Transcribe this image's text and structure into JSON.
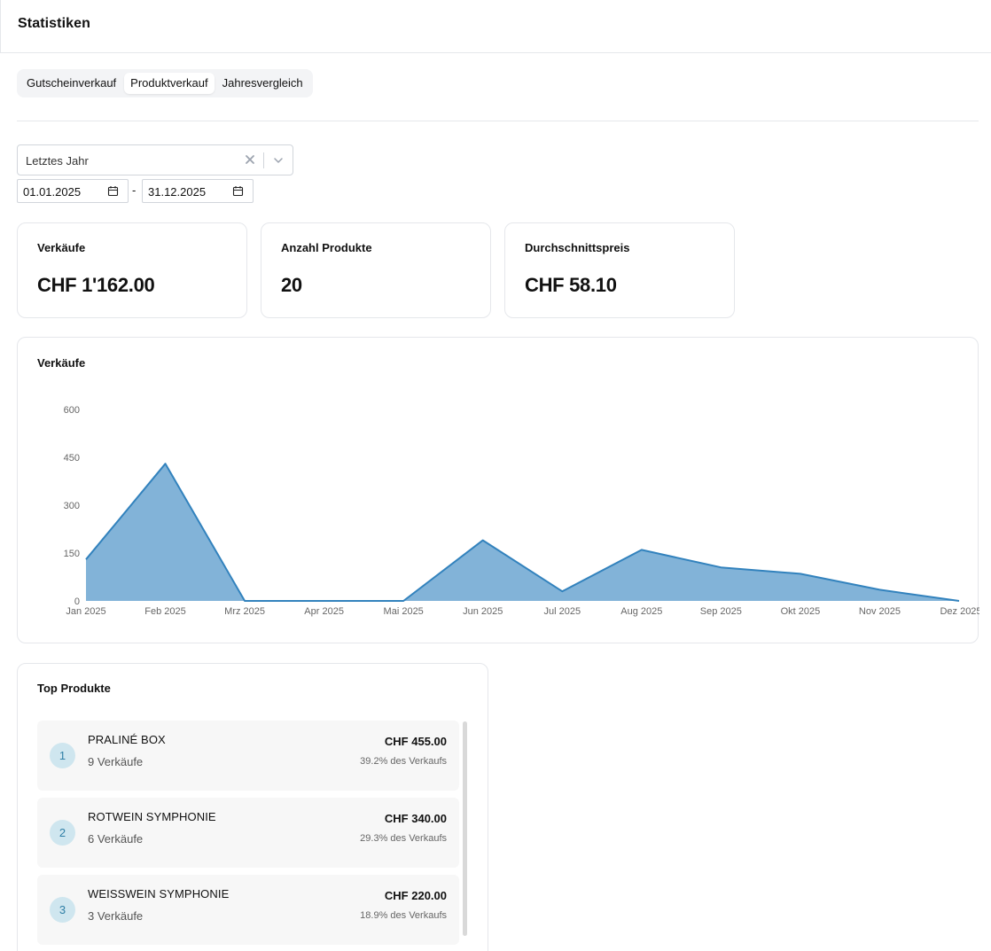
{
  "header": {
    "title": "Statistiken"
  },
  "tabs": [
    {
      "label": "Gutscheinverkauf",
      "active": false
    },
    {
      "label": "Produktverkauf",
      "active": true
    },
    {
      "label": "Jahresvergleich",
      "active": false
    }
  ],
  "filters": {
    "period_value": "Letztes Jahr",
    "date_from": "01.01.2025",
    "date_to": "31.12.2025",
    "date_separator": "-"
  },
  "kpis": [
    {
      "label": "Verkäufe",
      "value": "CHF 1'162.00"
    },
    {
      "label": "Anzahl Produkte",
      "value": "20"
    },
    {
      "label": "Durchschnittspreis",
      "value": "CHF 58.10"
    }
  ],
  "sales_chart": {
    "title": "Verkäufe"
  },
  "chart_data": {
    "type": "area",
    "title": "Verkäufe",
    "categories": [
      "Jan 2025",
      "Feb 2025",
      "Mrz 2025",
      "Apr 2025",
      "Mai 2025",
      "Jun 2025",
      "Jul 2025",
      "Aug 2025",
      "Sep 2025",
      "Okt 2025",
      "Nov 2025",
      "Dez 2025"
    ],
    "values": [
      130,
      430,
      0,
      0,
      0,
      190,
      30,
      160,
      105,
      85,
      35,
      0
    ],
    "yticks": [
      0,
      150,
      300,
      450,
      600
    ],
    "ylim": [
      0,
      600
    ],
    "grid": false,
    "colors": {
      "fill": "#82b3d8",
      "stroke": "#3282bd"
    }
  },
  "top_products": {
    "title": "Top Produkte",
    "items": [
      {
        "rank": "1",
        "name": "PRALINÉ BOX",
        "sales": "9 Verkäufe",
        "amount": "CHF 455.00",
        "share": "39.2% des Verkaufs"
      },
      {
        "rank": "2",
        "name": "ROTWEIN SYMPHONIE",
        "sales": "6 Verkäufe",
        "amount": "CHF 340.00",
        "share": "29.3% des Verkaufs"
      },
      {
        "rank": "3",
        "name": "WEISSWEIN SYMPHONIE",
        "sales": "3 Verkäufe",
        "amount": "CHF 220.00",
        "share": "18.9% des Verkaufs"
      }
    ]
  },
  "icons": {
    "clear": "close-icon",
    "dropdown": "chevron-down-icon",
    "calendar": "calendar-icon"
  }
}
